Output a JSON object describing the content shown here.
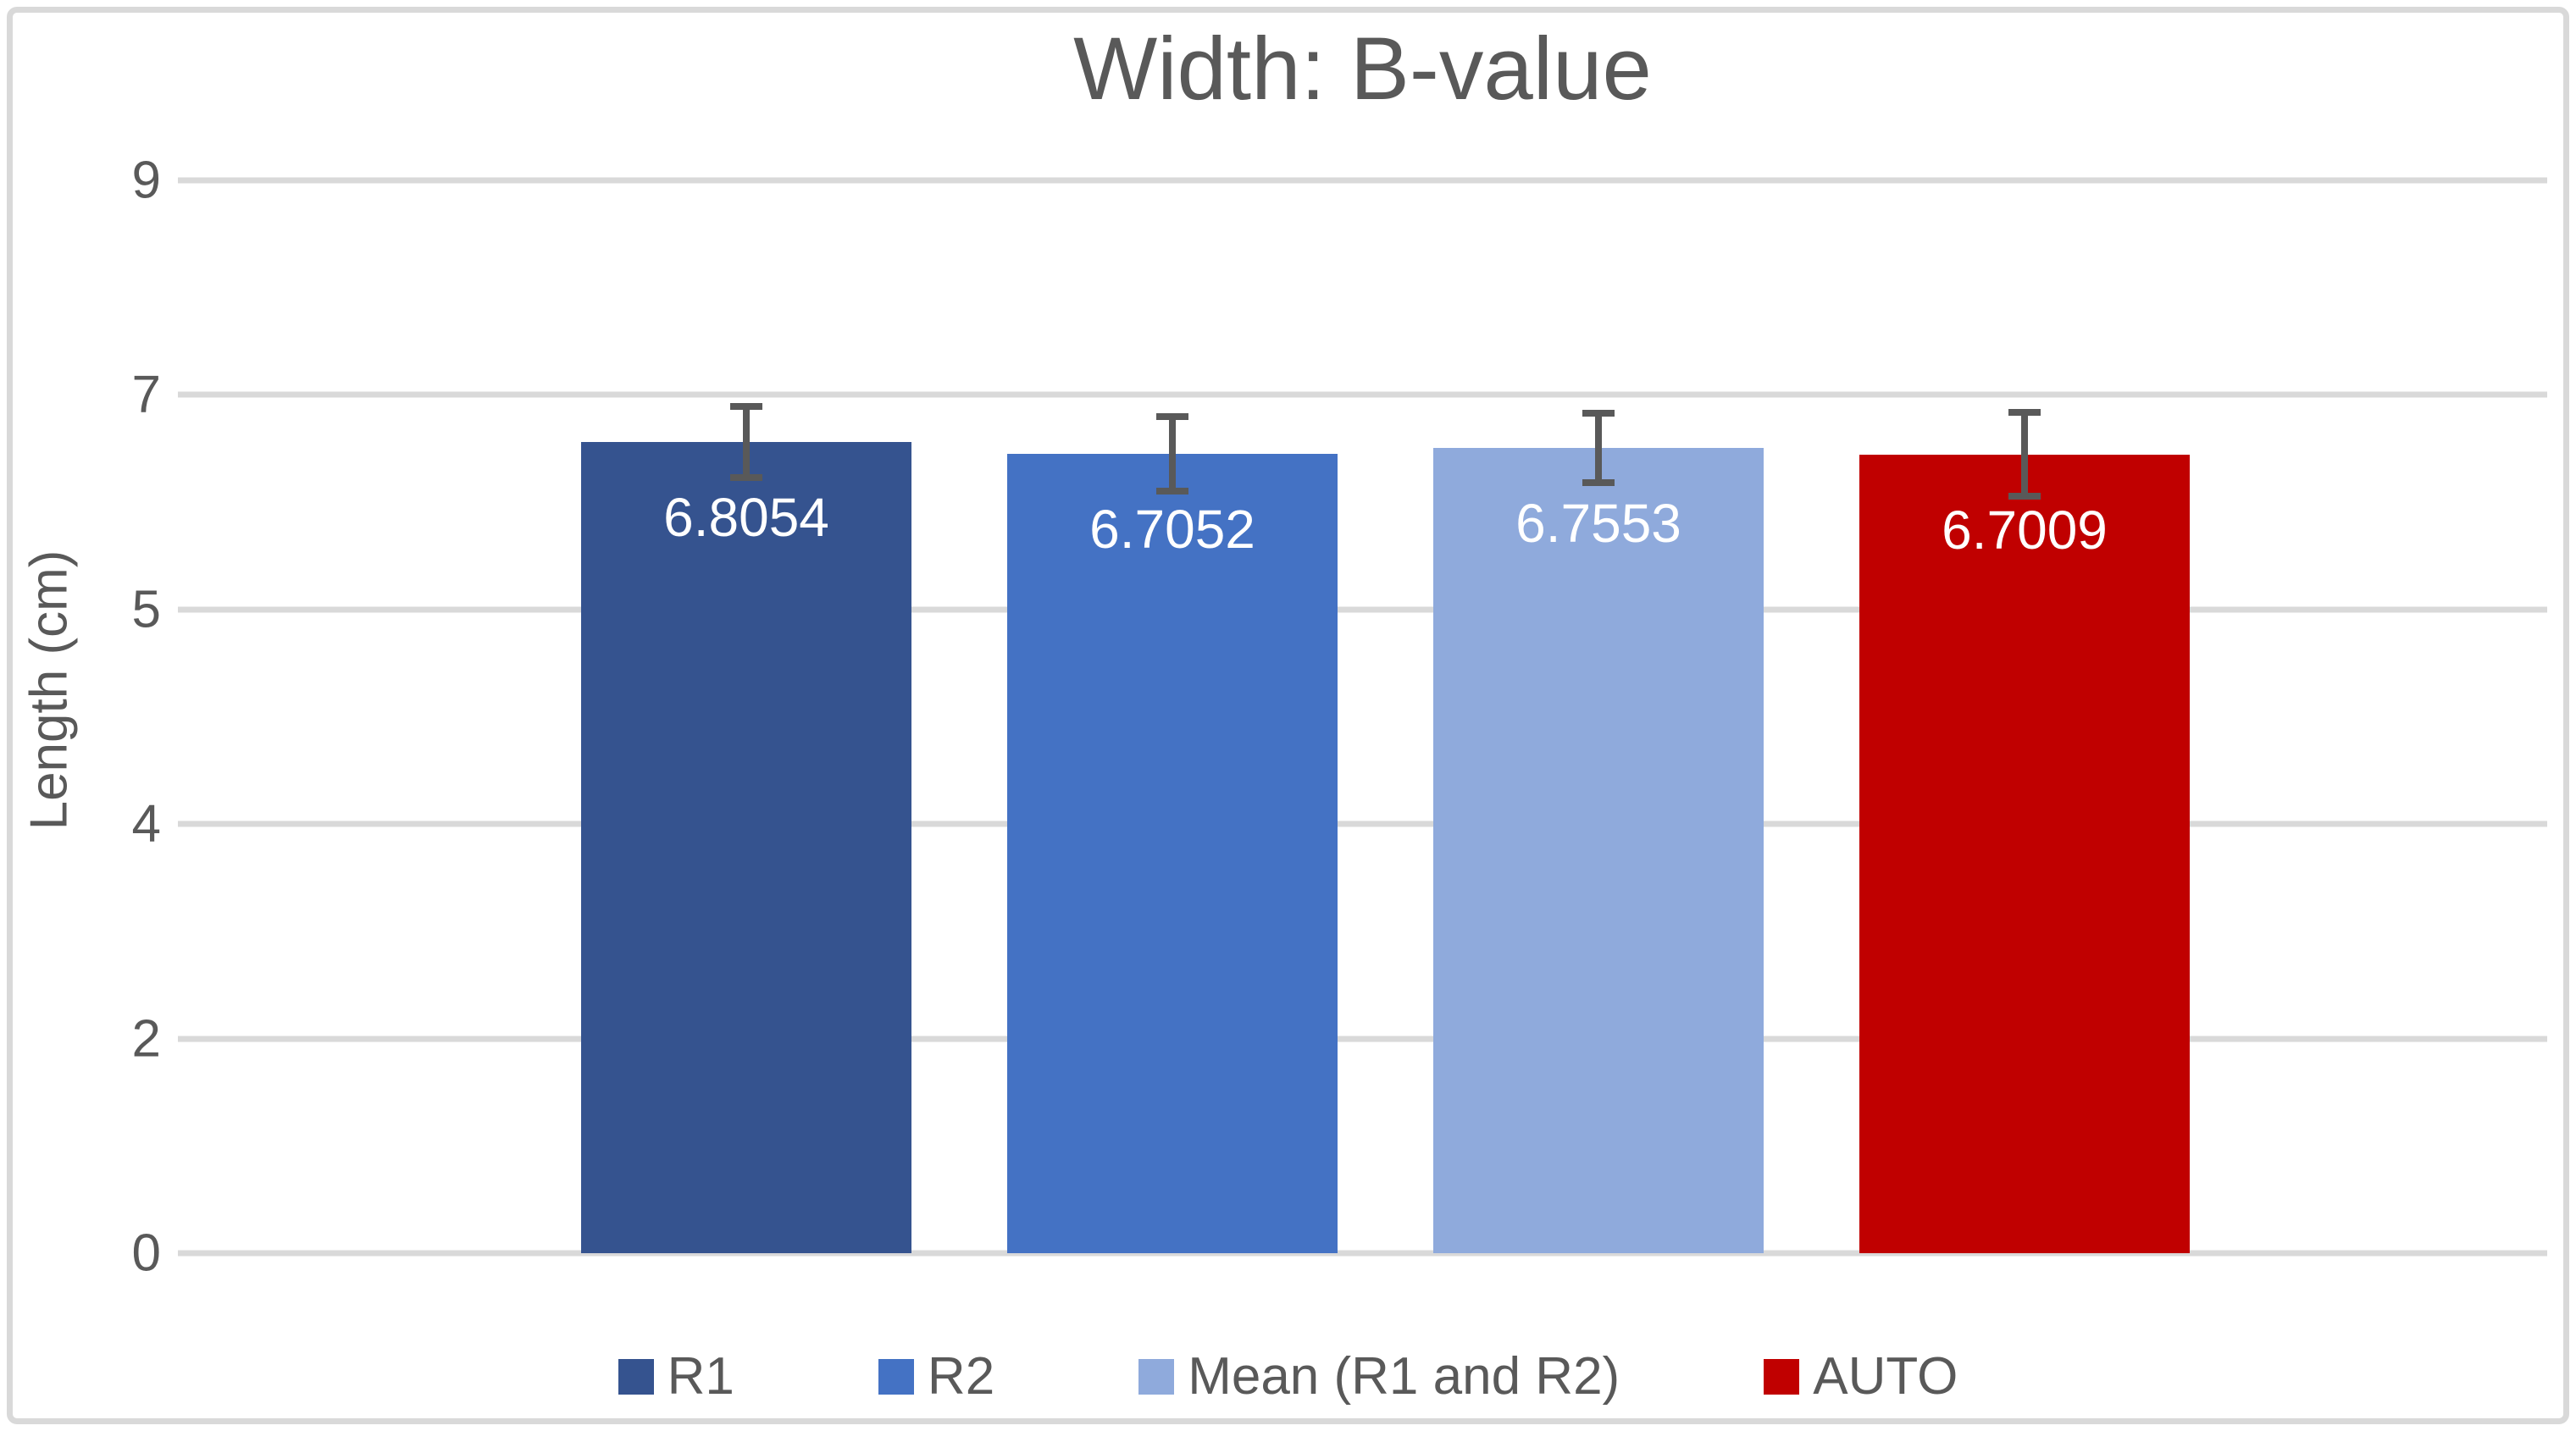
{
  "chart_data": {
    "type": "bar",
    "title": "Width: B-value",
    "xlabel": "",
    "ylabel": "Length (cm)",
    "ylim": [
      0,
      9
    ],
    "ymajor_unit": 1.8,
    "ytick_labels_top_to_bottom": [
      "9",
      "7",
      "5",
      "4",
      "2",
      "0"
    ],
    "ytick_values_top_to_bottom": [
      9,
      7.2,
      5.4,
      3.6,
      1.8,
      0
    ],
    "grid": true,
    "legend_position": "bottom",
    "categories": [
      ""
    ],
    "series": [
      {
        "name": "R1",
        "value": 6.8054,
        "label": "6.8054",
        "error": 0.33,
        "color": "#35538F"
      },
      {
        "name": "R2",
        "value": 6.7052,
        "label": "6.7052",
        "error": 0.34,
        "color": "#4472C4"
      },
      {
        "name": "Mean (R1 and R2)",
        "value": 6.7553,
        "label": "6.7553",
        "error": 0.32,
        "color": "#8FAADC"
      },
      {
        "name": "AUTO",
        "value": 6.7009,
        "label": "6.7009",
        "error": 0.38,
        "color": "#C00000"
      }
    ]
  },
  "style": {
    "background": "#FFFFFF",
    "frame_border_color": "#D9D9D9",
    "gridline_color": "#D9D9D9",
    "text_color": "#595959",
    "error_bar_color": "#595959",
    "bar_label_color": "#FFFFFF"
  }
}
